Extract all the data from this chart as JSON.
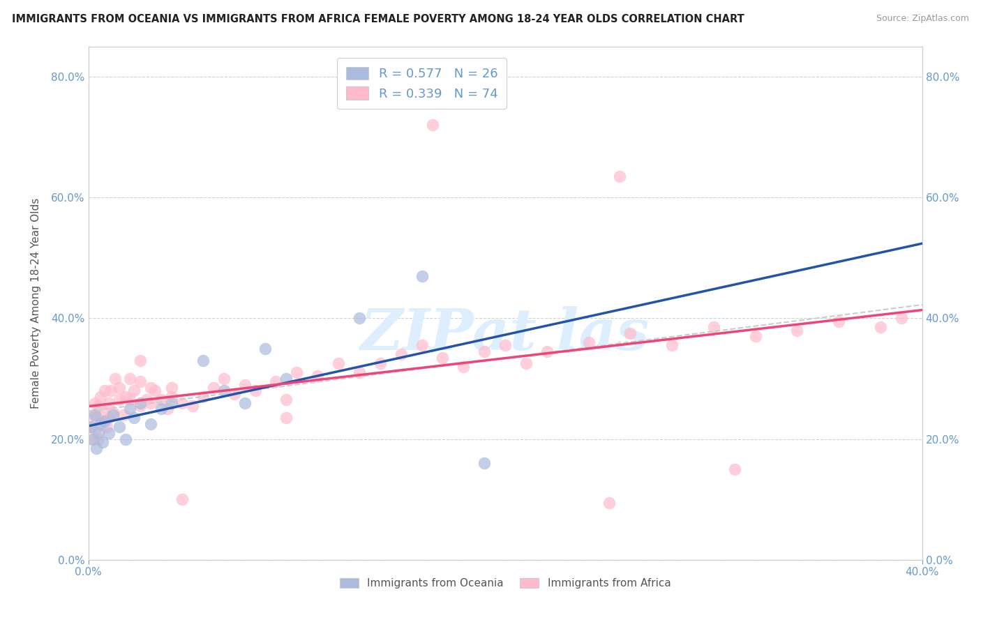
{
  "title": "IMMIGRANTS FROM OCEANIA VS IMMIGRANTS FROM AFRICA FEMALE POVERTY AMONG 18-24 YEAR OLDS CORRELATION CHART",
  "source": "Source: ZipAtlas.com",
  "ylabel": "Female Poverty Among 18-24 Year Olds",
  "xlim": [
    0.0,
    0.4
  ],
  "ylim": [
    0.0,
    0.85
  ],
  "xtick_labels": [
    "0.0%",
    "40.0%"
  ],
  "xtick_vals": [
    0.0,
    0.4
  ],
  "yticks": [
    0.0,
    0.2,
    0.4,
    0.6,
    0.8
  ],
  "color_oceania_fill": "#AABBDD",
  "color_africa_fill": "#FFBBCC",
  "color_line_oceania": "#2255AA",
  "color_line_africa": "#EE4477",
  "color_trendline": "#CCCCCC",
  "watermark_color": "#DDEEFF",
  "background_color": "#FFFFFF",
  "tick_color": "#6699CC",
  "label_color": "#555555",
  "oceania_x": [
    0.001,
    0.002,
    0.003,
    0.004,
    0.005,
    0.006,
    0.007,
    0.008,
    0.01,
    0.012,
    0.015,
    0.018,
    0.02,
    0.022,
    0.025,
    0.03,
    0.035,
    0.04,
    0.055,
    0.065,
    0.075,
    0.085,
    0.095,
    0.13,
    0.16,
    0.19
  ],
  "oceania_y": [
    0.22,
    0.2,
    0.24,
    0.185,
    0.21,
    0.225,
    0.195,
    0.23,
    0.21,
    0.24,
    0.22,
    0.2,
    0.25,
    0.235,
    0.26,
    0.225,
    0.25,
    0.26,
    0.33,
    0.28,
    0.26,
    0.35,
    0.3,
    0.4,
    0.47,
    0.16
  ],
  "africa_x": [
    0.001,
    0.002,
    0.002,
    0.003,
    0.003,
    0.004,
    0.005,
    0.005,
    0.006,
    0.007,
    0.008,
    0.008,
    0.009,
    0.01,
    0.01,
    0.011,
    0.012,
    0.013,
    0.015,
    0.015,
    0.017,
    0.018,
    0.02,
    0.02,
    0.022,
    0.025,
    0.025,
    0.028,
    0.03,
    0.03,
    0.032,
    0.035,
    0.038,
    0.04,
    0.04,
    0.045,
    0.05,
    0.055,
    0.06,
    0.065,
    0.07,
    0.075,
    0.08,
    0.09,
    0.095,
    0.1,
    0.11,
    0.12,
    0.13,
    0.14,
    0.15,
    0.16,
    0.17,
    0.18,
    0.19,
    0.2,
    0.21,
    0.22,
    0.24,
    0.26,
    0.28,
    0.3,
    0.32,
    0.34,
    0.36,
    0.38,
    0.39,
    0.165,
    0.255,
    0.025,
    0.045,
    0.095,
    0.25,
    0.31
  ],
  "africa_y": [
    0.22,
    0.24,
    0.2,
    0.26,
    0.215,
    0.235,
    0.2,
    0.255,
    0.27,
    0.23,
    0.245,
    0.28,
    0.22,
    0.26,
    0.235,
    0.28,
    0.245,
    0.3,
    0.265,
    0.285,
    0.24,
    0.27,
    0.3,
    0.265,
    0.28,
    0.255,
    0.295,
    0.265,
    0.285,
    0.26,
    0.28,
    0.265,
    0.25,
    0.27,
    0.285,
    0.26,
    0.255,
    0.27,
    0.285,
    0.3,
    0.275,
    0.29,
    0.28,
    0.295,
    0.265,
    0.31,
    0.305,
    0.325,
    0.31,
    0.325,
    0.34,
    0.355,
    0.335,
    0.32,
    0.345,
    0.355,
    0.325,
    0.345,
    0.36,
    0.375,
    0.355,
    0.385,
    0.37,
    0.38,
    0.395,
    0.385,
    0.4,
    0.72,
    0.635,
    0.33,
    0.1,
    0.235,
    0.095,
    0.15
  ]
}
